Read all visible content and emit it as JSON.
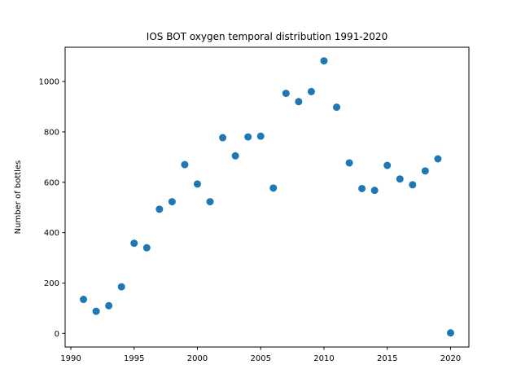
{
  "chart_data": {
    "type": "scatter",
    "title": "IOS BOT oxygen temporal distribution 1991-2020",
    "xlabel": "",
    "ylabel": "Number of bottles",
    "xlim": [
      1989.55,
      2021.45
    ],
    "ylim": [
      -54,
      1136
    ],
    "xticks": [
      1990,
      1995,
      2000,
      2005,
      2010,
      2015,
      2020
    ],
    "yticks": [
      0,
      200,
      400,
      600,
      800,
      1000
    ],
    "grid": false,
    "color": "#1f77b4",
    "points": [
      {
        "x": 1991,
        "y": 135
      },
      {
        "x": 1992,
        "y": 88
      },
      {
        "x": 1993,
        "y": 110
      },
      {
        "x": 1994,
        "y": 185
      },
      {
        "x": 1995,
        "y": 358
      },
      {
        "x": 1996,
        "y": 340
      },
      {
        "x": 1997,
        "y": 493
      },
      {
        "x": 1998,
        "y": 523
      },
      {
        "x": 1999,
        "y": 670
      },
      {
        "x": 2000,
        "y": 593
      },
      {
        "x": 2001,
        "y": 523
      },
      {
        "x": 2002,
        "y": 777
      },
      {
        "x": 2003,
        "y": 705
      },
      {
        "x": 2004,
        "y": 780
      },
      {
        "x": 2005,
        "y": 783
      },
      {
        "x": 2006,
        "y": 577
      },
      {
        "x": 2007,
        "y": 953
      },
      {
        "x": 2008,
        "y": 920
      },
      {
        "x": 2009,
        "y": 960
      },
      {
        "x": 2010,
        "y": 1082
      },
      {
        "x": 2011,
        "y": 898
      },
      {
        "x": 2012,
        "y": 677
      },
      {
        "x": 2013,
        "y": 575
      },
      {
        "x": 2014,
        "y": 568
      },
      {
        "x": 2015,
        "y": 667
      },
      {
        "x": 2016,
        "y": 613
      },
      {
        "x": 2017,
        "y": 590
      },
      {
        "x": 2018,
        "y": 645
      },
      {
        "x": 2019,
        "y": 693
      },
      {
        "x": 2020,
        "y": 2
      }
    ]
  }
}
